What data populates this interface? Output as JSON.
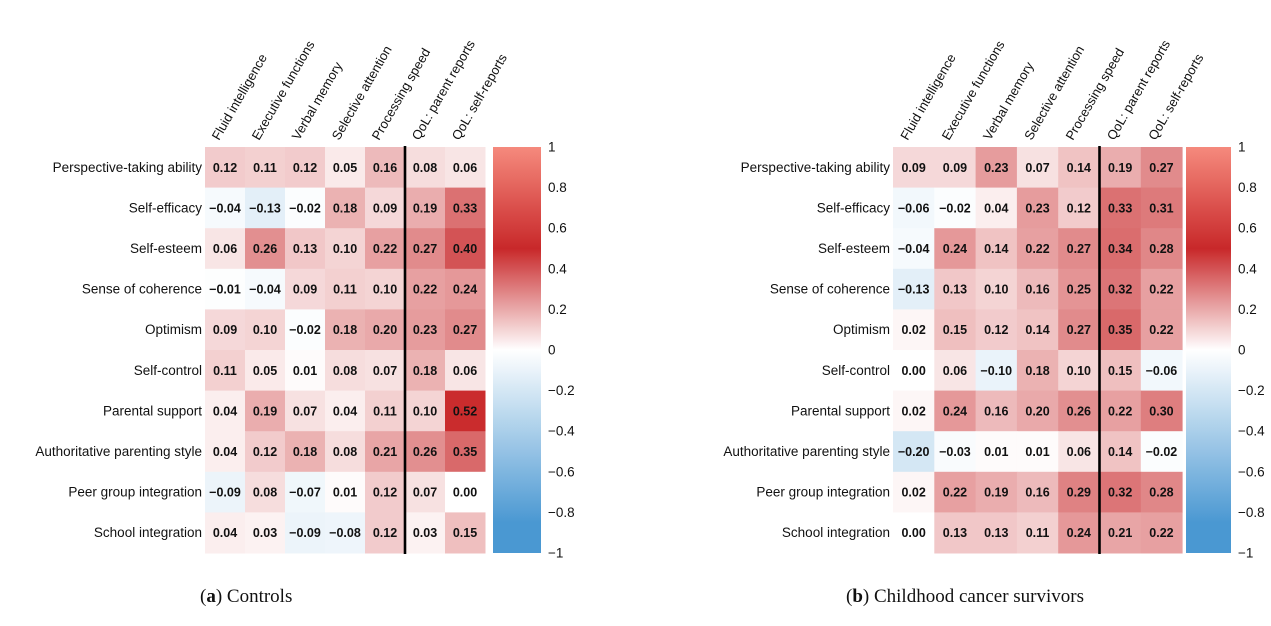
{
  "figure": {
    "caption_a": {
      "letter": "a",
      "text": "Controls"
    },
    "caption_b": {
      "letter": "b",
      "text": "Childhood cancer survivors"
    }
  },
  "colors": {
    "negative": "#4a98d2",
    "zero": "#ffffff",
    "positive": "#c8282a",
    "positive_light": "#f58a7d",
    "divider": "#000000"
  },
  "chart_data": [
    {
      "type": "heatmap",
      "title": "",
      "x_labels": [
        "Fluid intelligence",
        "Executive functions",
        "Verbal memory",
        "Selective attention",
        "Processing speed",
        "QoL: parent reports",
        "QoL: self-reports"
      ],
      "y_labels": [
        "Perspective-taking ability",
        "Self-efficacy",
        "Self-esteem",
        "Sense of coherence",
        "Optimism",
        "Self-control",
        "Parental support",
        "Authoritative parenting style",
        "Peer group integration",
        "School integration"
      ],
      "values": [
        [
          0.12,
          0.11,
          0.12,
          0.05,
          0.16,
          0.08,
          0.06
        ],
        [
          -0.04,
          -0.13,
          -0.02,
          0.18,
          0.09,
          0.19,
          0.33
        ],
        [
          0.06,
          0.26,
          0.13,
          0.1,
          0.22,
          0.27,
          0.4
        ],
        [
          -0.01,
          -0.04,
          0.09,
          0.11,
          0.1,
          0.22,
          0.24
        ],
        [
          0.09,
          0.1,
          -0.02,
          0.18,
          0.2,
          0.23,
          0.27
        ],
        [
          0.11,
          0.05,
          0.01,
          0.08,
          0.07,
          0.18,
          0.06
        ],
        [
          0.04,
          0.19,
          0.07,
          0.04,
          0.11,
          0.1,
          0.52
        ],
        [
          0.04,
          0.12,
          0.18,
          0.08,
          0.21,
          0.26,
          0.35
        ],
        [
          -0.09,
          0.08,
          -0.07,
          0.01,
          0.12,
          0.07,
          0.0
        ],
        [
          0.04,
          0.03,
          -0.09,
          -0.08,
          0.12,
          0.03,
          0.15
        ]
      ],
      "labels": [
        [
          "0.12",
          "0.11",
          "0.12",
          "0.05",
          "0.16",
          "0.08",
          "0.06"
        ],
        [
          "−0.04",
          "−0.13",
          "−0.02",
          "0.18",
          "0.09",
          "0.19",
          "0.33"
        ],
        [
          "0.06",
          "0.26",
          "0.13",
          "0.10",
          "0.22",
          "0.27",
          "0.40"
        ],
        [
          "−0.01",
          "−0.04",
          "0.09",
          "0.11",
          "0.10",
          "0.22",
          "0.24"
        ],
        [
          "0.09",
          "0.10",
          "−0.02",
          "0.18",
          "0.20",
          "0.23",
          "0.27"
        ],
        [
          "0.11",
          "0.05",
          "0.01",
          "0.08",
          "0.07",
          "0.18",
          "0.06"
        ],
        [
          "0.04",
          "0.19",
          "0.07",
          "0.04",
          "0.11",
          "0.10",
          "0.52"
        ],
        [
          "0.04",
          "0.12",
          "0.18",
          "0.08",
          "0.21",
          "0.26",
          "0.35"
        ],
        [
          "−0.09",
          "0.08",
          "−0.07",
          "0.01",
          "0.12",
          "0.07",
          "0.00"
        ],
        [
          "0.04",
          "0.03",
          "−0.09",
          "−0.08",
          "0.12",
          "0.03",
          "0.15"
        ]
      ],
      "divider_after_column": 5,
      "colorbar": {
        "range": [
          -1,
          1
        ],
        "ticks": [
          "1",
          "0.8",
          "0.6",
          "0.4",
          "0.2",
          "0",
          "−0.2",
          "−0.4",
          "−0.6",
          "−0.8",
          "−1"
        ]
      }
    },
    {
      "type": "heatmap",
      "title": "",
      "x_labels": [
        "Fluid intelligence",
        "Executive functions",
        "Verbal memory",
        "Selective attention",
        "Processing speed",
        "QoL: parent reports",
        "QoL: self-reports"
      ],
      "y_labels": [
        "Perspective-taking ability",
        "Self-efficacy",
        "Self-esteem",
        "Sense of coherence",
        "Optimism",
        "Self-control",
        "Parental support",
        "Authoritative parenting style",
        "Peer group integration",
        "School integration"
      ],
      "values": [
        [
          0.09,
          0.09,
          0.23,
          0.07,
          0.14,
          0.19,
          0.27
        ],
        [
          -0.06,
          -0.02,
          0.04,
          0.23,
          0.12,
          0.33,
          0.31
        ],
        [
          -0.04,
          0.24,
          0.14,
          0.22,
          0.27,
          0.34,
          0.28
        ],
        [
          -0.13,
          0.13,
          0.1,
          0.16,
          0.25,
          0.32,
          0.22
        ],
        [
          0.02,
          0.15,
          0.12,
          0.14,
          0.27,
          0.35,
          0.22
        ],
        [
          0.0,
          0.06,
          -0.1,
          0.18,
          0.1,
          0.15,
          -0.06
        ],
        [
          0.02,
          0.24,
          0.16,
          0.2,
          0.26,
          0.22,
          0.3
        ],
        [
          -0.2,
          -0.03,
          0.01,
          0.01,
          0.06,
          0.14,
          -0.02
        ],
        [
          0.02,
          0.22,
          0.19,
          0.16,
          0.29,
          0.32,
          0.28
        ],
        [
          0.0,
          0.13,
          0.13,
          0.11,
          0.24,
          0.21,
          0.22
        ]
      ],
      "labels": [
        [
          "0.09",
          "0.09",
          "0.23",
          "0.07",
          "0.14",
          "0.19",
          "0.27"
        ],
        [
          "−0.06",
          "−0.02",
          "0.04",
          "0.23",
          "0.12",
          "0.33",
          "0.31"
        ],
        [
          "−0.04",
          "0.24",
          "0.14",
          "0.22",
          "0.27",
          "0.34",
          "0.28"
        ],
        [
          "−0.13",
          "0.13",
          "0.10",
          "0.16",
          "0.25",
          "0.32",
          "0.22"
        ],
        [
          "0.02",
          "0.15",
          "0.12",
          "0.14",
          "0.27",
          "0.35",
          "0.22"
        ],
        [
          "0.00",
          "0.06",
          "−0.10",
          "0.18",
          "0.10",
          "0.15",
          "−0.06"
        ],
        [
          "0.02",
          "0.24",
          "0.16",
          "0.20",
          "0.26",
          "0.22",
          "0.30"
        ],
        [
          "−0.20",
          "−0.03",
          "0.01",
          "0.01",
          "0.06",
          "0.14",
          "−0.02"
        ],
        [
          "0.02",
          "0.22",
          "0.19",
          "0.16",
          "0.29",
          "0.32",
          "0.28"
        ],
        [
          "0.00",
          "0.13",
          "0.13",
          "0.11",
          "0.24",
          "0.21",
          "0.22"
        ]
      ],
      "divider_after_column": 5,
      "colorbar": {
        "range": [
          -1,
          1
        ],
        "ticks": [
          "1",
          "0.8",
          "0.6",
          "0.4",
          "0.2",
          "0",
          "−0.2",
          "−0.4",
          "−0.6",
          "−0.8",
          "−1"
        ]
      }
    }
  ]
}
